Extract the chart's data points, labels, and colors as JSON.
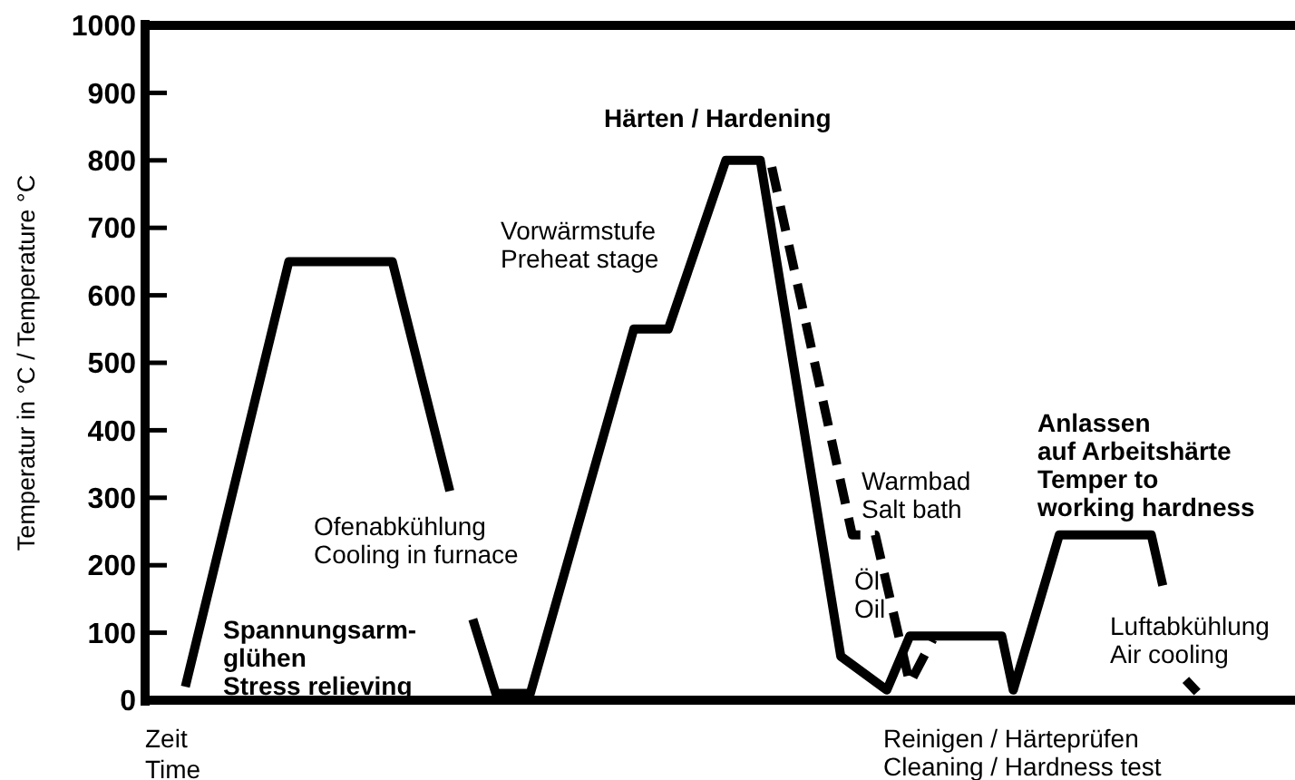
{
  "chart_data": {
    "type": "line",
    "xlabel": "Zeit\nTime",
    "ylabel": "Temperatur in °C / Temperature °C",
    "categories": [
      null,
      null,
      null,
      null,
      null,
      null,
      null,
      null,
      null,
      null,
      null,
      null,
      null,
      null,
      null,
      null,
      null,
      null,
      null,
      null,
      null,
      null,
      null,
      null,
      null,
      null,
      null,
      null,
      null,
      null,
      null,
      null,
      null,
      null,
      null,
      null,
      null,
      null,
      null,
      null,
      null,
      null,
      null,
      null,
      null,
      null,
      null,
      null,
      null,
      null,
      null,
      null,
      null,
      null,
      null,
      null,
      null,
      null,
      null,
      null,
      null,
      null,
      null,
      null,
      null,
      null,
      null,
      null,
      null,
      null,
      null,
      null,
      null,
      null,
      null,
      null,
      null,
      null,
      null,
      null,
      null,
      null,
      null,
      null,
      null,
      null,
      null,
      null,
      null,
      null,
      null,
      null,
      null,
      null,
      null,
      null,
      null,
      null,
      null,
      null
    ],
    "ylim": [
      0,
      1000
    ],
    "yticks": [
      0,
      100,
      200,
      300,
      400,
      500,
      600,
      700,
      800,
      900,
      1000
    ],
    "tick_labels": "y",
    "grid": false,
    "marker": "none",
    "series": [
      {
        "color": "#000000",
        "line_style": "solid",
        "values": [
          null,
          null,
          null,
          20,
          null,
          null,
          null,
          null,
          null,
          null,
          null,
          null,
          650,
          null,
          null,
          null,
          null,
          null,
          null,
          null,
          null,
          650,
          null,
          null,
          null,
          null,
          310,
          null,
          null,
          null,
          null,
          null,
          null,
          null,
          null,
          null,
          null,
          null,
          null,
          null,
          null,
          null,
          null,
          null,
          null,
          null,
          null,
          null,
          null,
          null,
          null,
          null,
          null,
          null,
          null,
          null,
          null,
          null,
          null,
          null,
          null,
          null,
          null,
          null,
          null,
          null,
          null,
          null,
          null,
          null,
          null,
          null,
          null,
          null,
          null,
          null,
          null,
          null,
          null,
          null,
          null,
          null,
          null,
          null,
          null,
          null,
          null,
          null,
          null,
          null,
          null,
          null,
          null,
          null,
          null,
          null,
          null,
          null,
          null,
          null
        ]
      },
      {
        "color": "#000000",
        "line_style": "solid",
        "values": [
          null,
          null,
          null,
          null,
          null,
          null,
          null,
          null,
          null,
          null,
          null,
          null,
          null,
          null,
          null,
          null,
          null,
          null,
          null,
          null,
          null,
          null,
          null,
          null,
          null,
          null,
          null,
          null,
          120,
          null,
          10,
          null,
          null,
          10,
          null,
          null,
          null,
          null,
          null,
          null,
          null,
          null,
          550,
          null,
          null,
          550,
          null,
          null,
          null,
          null,
          800,
          null,
          null,
          800,
          null,
          null,
          null,
          null,
          null,
          null,
          65,
          null,
          null,
          null,
          15,
          null,
          95,
          null,
          null,
          null,
          null,
          null,
          null,
          null,
          95,
          15,
          null,
          null,
          null,
          245,
          null,
          null,
          null,
          null,
          null,
          null,
          null,
          245,
          170,
          null,
          null,
          null,
          null,
          null,
          null,
          null,
          null,
          null,
          null,
          null
        ]
      },
      {
        "color": "#000000",
        "line_style": "solid",
        "values": [
          null,
          null,
          null,
          null,
          null,
          null,
          null,
          null,
          null,
          null,
          null,
          null,
          null,
          null,
          null,
          null,
          null,
          null,
          null,
          null,
          null,
          null,
          null,
          null,
          null,
          null,
          null,
          null,
          null,
          null,
          null,
          null,
          null,
          null,
          null,
          null,
          null,
          null,
          null,
          null,
          null,
          null,
          null,
          null,
          null,
          null,
          null,
          null,
          null,
          null,
          null,
          null,
          null,
          null,
          null,
          null,
          null,
          null,
          null,
          null,
          null,
          null,
          null,
          null,
          null,
          null,
          null,
          null,
          null,
          null,
          null,
          null,
          null,
          null,
          null,
          null,
          null,
          null,
          null,
          null,
          null,
          null,
          null,
          null,
          null,
          null,
          null,
          null,
          null,
          null,
          30,
          12,
          null,
          null,
          null,
          null,
          null,
          null,
          null,
          null
        ]
      },
      {
        "color": "#000000",
        "line_style": "dashed",
        "values": [
          null,
          null,
          null,
          null,
          null,
          null,
          null,
          null,
          null,
          null,
          null,
          null,
          null,
          null,
          null,
          null,
          null,
          null,
          null,
          null,
          null,
          null,
          null,
          null,
          null,
          null,
          null,
          null,
          null,
          null,
          null,
          null,
          null,
          null,
          null,
          null,
          null,
          null,
          null,
          null,
          null,
          null,
          null,
          null,
          null,
          null,
          null,
          null,
          null,
          null,
          null,
          null,
          null,
          null,
          790,
          null,
          null,
          null,
          null,
          null,
          null,
          245,
          null,
          245,
          null,
          null,
          25,
          null,
          90,
          null,
          null,
          null,
          null,
          null,
          null,
          null,
          null,
          null,
          null,
          null,
          null,
          null,
          null,
          null,
          null,
          null,
          null,
          null,
          null,
          null,
          null,
          null,
          null,
          null,
          null,
          null,
          null,
          null,
          null,
          null
        ]
      }
    ],
    "annotations": [
      "Härten / Hardening",
      "Vorwärmstufe\nPreheat stage",
      "Ofenabkühlung\nCooling in furnace",
      "Spannungsarm-\nglühen\nStress relieving",
      "Warmbad\nSalt bath",
      "Öl\nOil",
      "Anlassen\nauf Arbeitshärte\nTemper to\nworking hardness",
      "Luftabkühlung\nAir cooling",
      "Reinigen / Härteprüfen\nCleaning / Hardness test"
    ]
  }
}
